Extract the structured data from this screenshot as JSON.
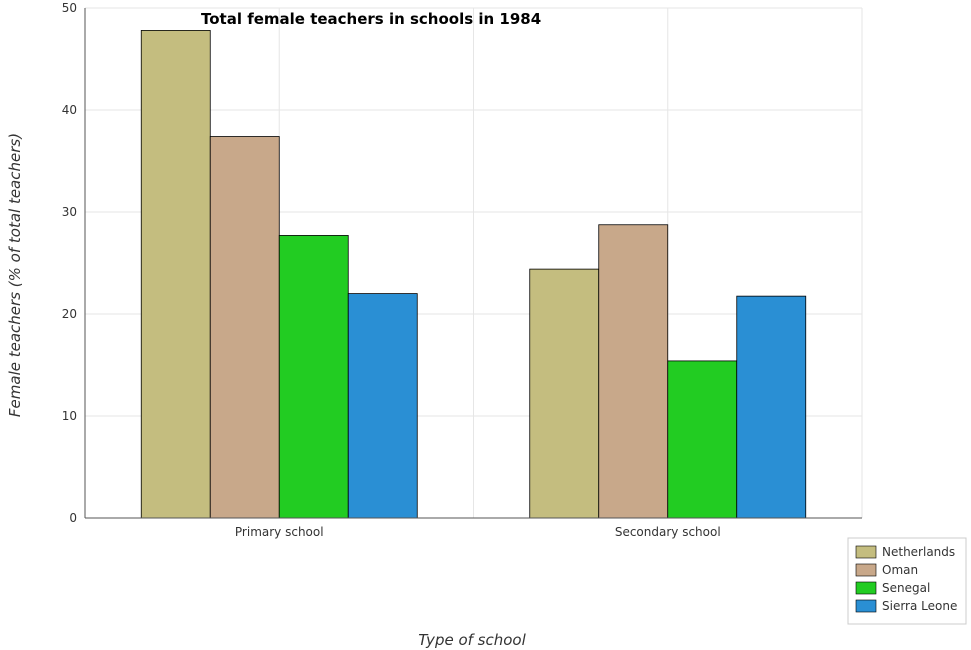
{
  "chart_data": {
    "type": "bar",
    "title": "Total female teachers in schools in 1984",
    "xlabel": "Type of school",
    "ylabel": "Female teachers (% of total teachers)",
    "categories": [
      "Primary school",
      "Secondary school"
    ],
    "series": [
      {
        "name": "Netherlands",
        "color": "#c4bd7f",
        "values": [
          47.8,
          24.4
        ]
      },
      {
        "name": "Oman",
        "color": "#c8a88a",
        "values": [
          37.4,
          28.75
        ]
      },
      {
        "name": "Senegal",
        "color": "#22cc22",
        "values": [
          27.7,
          15.4
        ]
      },
      {
        "name": "Sierra Leone",
        "color": "#2a8fd4",
        "values": [
          22.0,
          21.75
        ]
      }
    ],
    "ylim": [
      0,
      50
    ],
    "yticks": [
      0,
      10,
      20,
      30,
      40,
      50
    ],
    "grid": true,
    "legend_position": "bottom-right"
  }
}
